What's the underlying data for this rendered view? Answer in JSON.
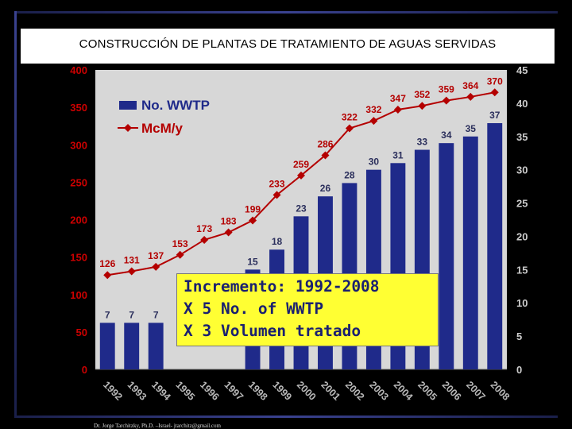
{
  "title": "CONSTRUCCIÓN DE PLANTAS DE TRATAMIENTO DE AGUAS SERVIDAS",
  "callout": {
    "line1": "Incremento: 1992-2008",
    "line2": "X 5 No. of WWTP",
    "line3": "X 3 Volumen tratado"
  },
  "footer": "Dr. Jorge Tarchitzky, Ph.D. –Israel- jtarchitz@gmail.com",
  "colors": {
    "bars": "#1f2a8a",
    "line": "#b40000",
    "plot_bg": "#d7d7d7",
    "axis_text": "#cc0000",
    "right_axis_text": "#cccccc"
  },
  "chart_data": {
    "type": "bar",
    "categories": [
      "1992",
      "1993",
      "1994",
      "1995",
      "1996",
      "1997",
      "1998",
      "1999",
      "2000",
      "2001",
      "2002",
      "2003",
      "2004",
      "2005",
      "2006",
      "2007",
      "2008"
    ],
    "series": [
      {
        "name": "No. WWTP",
        "type": "bar",
        "axis": "right",
        "values": [
          7,
          7,
          7,
          null,
          null,
          null,
          15,
          18,
          23,
          26,
          28,
          30,
          31,
          33,
          34,
          35,
          37
        ],
        "labels": [
          "7",
          "7",
          "7",
          "",
          "",
          "",
          "15",
          "18",
          "23",
          "26",
          "28",
          "30",
          "31",
          "33",
          "34",
          "35",
          "37"
        ]
      },
      {
        "name": "McM/y",
        "type": "line",
        "axis": "left",
        "values": [
          126,
          131,
          137,
          153,
          173,
          183,
          199,
          233,
          259,
          286,
          322,
          332,
          347,
          352,
          359,
          364,
          370
        ],
        "labels": [
          "126",
          "131",
          "137",
          "153",
          "173",
          "183",
          "199",
          "233",
          "259",
          "286",
          "322",
          "332",
          "347",
          "352",
          "359",
          "364",
          "370"
        ]
      }
    ],
    "y_left": {
      "ticks": [
        0,
        50,
        100,
        150,
        200,
        250,
        300,
        350,
        400
      ],
      "ylim": [
        0,
        400
      ]
    },
    "y_right": {
      "ticks": [
        0,
        5,
        10,
        15,
        20,
        25,
        30,
        35,
        40,
        45
      ],
      "ylim": [
        0,
        45
      ]
    },
    "legend": "top-left",
    "grid": false
  }
}
